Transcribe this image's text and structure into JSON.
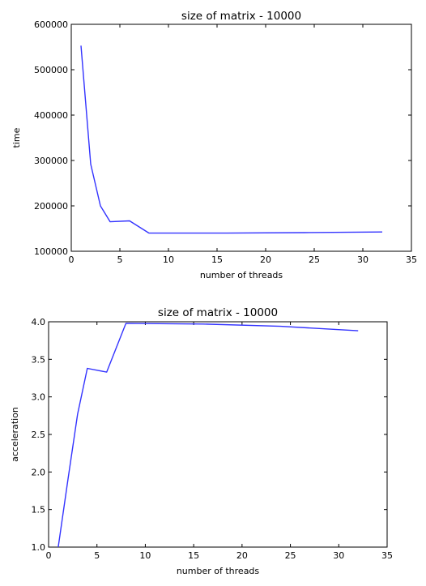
{
  "chart_data": [
    {
      "type": "line",
      "title": "size of matrix - 10000",
      "xlabel": "number of threads",
      "ylabel": "time",
      "xlim": [
        0,
        35
      ],
      "ylim": [
        100000,
        600000
      ],
      "xticks": [
        0,
        5,
        10,
        15,
        20,
        25,
        30,
        35
      ],
      "yticks": [
        100000,
        200000,
        300000,
        400000,
        500000,
        600000
      ],
      "xtick_labels": [
        "0",
        "5",
        "10",
        "15",
        "20",
        "25",
        "30",
        "35"
      ],
      "ytick_labels": [
        "100000",
        "200000",
        "300000",
        "400000",
        "500000",
        "600000"
      ],
      "grid": false,
      "series": [
        {
          "color": "#3333ff",
          "x": [
            1,
            2,
            3,
            4,
            6,
            8,
            16,
            24,
            32
          ],
          "y": [
            553000,
            292000,
            200000,
            165000,
            167000,
            140000,
            140000,
            141000,
            142500
          ]
        }
      ]
    },
    {
      "type": "line",
      "title": "size of matrix - 10000",
      "xlabel": "number of threads",
      "ylabel": "acceleration",
      "xlim": [
        0,
        35
      ],
      "ylim": [
        1.0,
        4.0
      ],
      "xticks": [
        0,
        5,
        10,
        15,
        20,
        25,
        30,
        35
      ],
      "yticks": [
        1.0,
        1.5,
        2.0,
        2.5,
        3.0,
        3.5,
        4.0
      ],
      "xtick_labels": [
        "0",
        "5",
        "10",
        "15",
        "20",
        "25",
        "30",
        "35"
      ],
      "ytick_labels": [
        "1.0",
        "1.5",
        "2.0",
        "2.5",
        "3.0",
        "3.5",
        "4.0"
      ],
      "grid": false,
      "series": [
        {
          "color": "#3333ff",
          "x": [
            1,
            2,
            3,
            4,
            6,
            8,
            16,
            24,
            32
          ],
          "y": [
            1.0,
            1.9,
            2.77,
            3.38,
            3.33,
            3.98,
            3.97,
            3.94,
            3.88
          ]
        }
      ]
    }
  ]
}
